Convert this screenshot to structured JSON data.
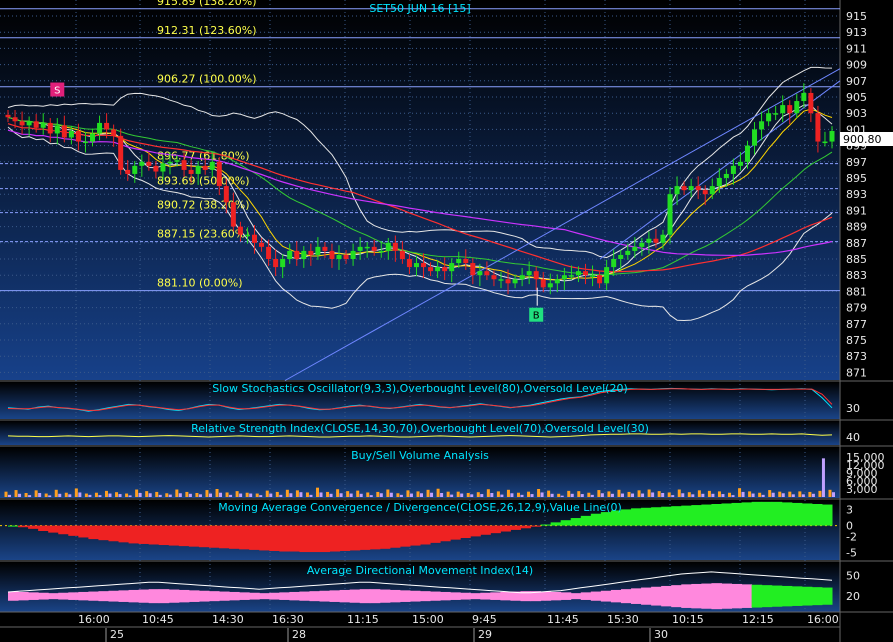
{
  "colors": {
    "panel_top": "#000000",
    "panel_bottom": "#123a7a",
    "grid": "#3a5a8a",
    "candle_up": "#22dd22",
    "candle_down": "#ee2222",
    "fib": "#8aa0ff",
    "fib_text": "#ffff4a",
    "title": "#00e5ff",
    "bollinger": "#e6e6e6",
    "ma_fast": "#ffd700",
    "ma_green": "#33cc33",
    "ma_red": "#ff3030",
    "ma_purple": "#cc33ff",
    "trendline": "#6e86ff"
  },
  "main": {
    "title": "SET50 JUN 16  [15]",
    "price_tag": "900.80",
    "signal_s": "S",
    "signal_b": "B"
  },
  "chart_data": [
    {
      "type": "candlestick",
      "title": "SET50 JUN 16  [15]",
      "ylim": [
        870,
        916
      ],
      "y_ticks": [
        871,
        873,
        875,
        877,
        879,
        881,
        883,
        885,
        887,
        889,
        891,
        893,
        895,
        897,
        899,
        901,
        903,
        905,
        907,
        909,
        911,
        913,
        915
      ],
      "last_price": 900.8,
      "fibonacci_levels": [
        {
          "price": 915.89,
          "label": "915.89 (138.20%)"
        },
        {
          "price": 912.31,
          "label": "912.31 (123.60%)"
        },
        {
          "price": 906.27,
          "label": "906.27 (100.00%)"
        },
        {
          "price": 896.77,
          "label": "896.77 (61.80%)"
        },
        {
          "price": 893.69,
          "label": "893.69 (50.00%)"
        },
        {
          "price": 890.72,
          "label": "890.72 (38.20%)"
        },
        {
          "price": 887.15,
          "label": "887.15 (23.60%)"
        },
        {
          "price": 881.1,
          "label": "881.10 (0.00%)"
        }
      ],
      "series": [
        {
          "values": [
            902.5,
            902,
            901.5,
            902,
            901.2,
            901.8,
            900.5,
            901.5,
            900,
            900.8,
            899.5,
            899.5,
            900.5,
            901.8,
            901,
            900.2,
            896,
            895.5,
            896.5,
            897,
            896.5,
            895.8,
            896.8,
            897,
            897.2,
            896,
            895.5,
            896.5,
            896,
            897,
            894,
            892,
            889,
            888,
            888,
            887,
            886.5,
            885,
            884,
            885,
            886,
            885,
            886,
            885.5,
            886.5,
            886,
            885,
            885.5,
            885,
            886,
            886.5,
            886.5,
            886,
            886,
            887,
            886,
            885,
            884,
            884.5,
            884,
            883.5,
            884,
            883.5,
            884.5,
            885,
            884.5,
            883,
            883.5,
            883,
            882.5,
            882.5,
            882,
            882.5,
            883,
            883.5,
            882.5,
            881.5,
            882,
            882.5,
            883,
            883,
            883.5,
            883,
            883,
            882,
            884,
            885,
            885.5,
            886,
            886.5,
            887,
            887.5,
            887,
            888,
            893,
            894,
            893.5,
            894,
            893.5,
            893,
            894,
            895,
            895.5,
            896.5,
            897,
            899,
            901,
            902,
            903,
            903,
            904,
            903,
            904.5,
            905.5,
            903,
            899.5,
            899.5,
            900.8
          ]
        }
      ],
      "signals": [
        {
          "label": "S",
          "index": 7,
          "price": 905.8
        },
        {
          "label": "B",
          "index": 75,
          "price": 878
        }
      ]
    },
    {
      "type": "line",
      "title": "Slow Stochastics Oscillator(9,3,3),Overbought Level(80),Oversold Level(20)",
      "y_ticks": [
        30
      ],
      "ylim": [
        0,
        100
      ],
      "series": [
        {
          "values": [
            30,
            28,
            26,
            32,
            35,
            30,
            28,
            25,
            20,
            24,
            30,
            35,
            40,
            38,
            33,
            30,
            25,
            22,
            28,
            35,
            40,
            38,
            30,
            25,
            28,
            32,
            36,
            40,
            38,
            34,
            28,
            24,
            26,
            30,
            35,
            38,
            34,
            30,
            28,
            32,
            36,
            40,
            36,
            32,
            30,
            34,
            38,
            42,
            38,
            34,
            30,
            34,
            38,
            44,
            50,
            56,
            60,
            62,
            70,
            78,
            82,
            84,
            86,
            85,
            84,
            86,
            87,
            86,
            85,
            84,
            86,
            85,
            84,
            86,
            85,
            84,
            83,
            84,
            85,
            86,
            84,
            60,
            30
          ]
        },
        {
          "values": [
            28,
            27,
            27,
            30,
            33,
            31,
            29,
            26,
            22,
            23,
            28,
            33,
            38,
            38,
            34,
            31,
            27,
            24,
            27,
            33,
            38,
            38,
            32,
            27,
            27,
            30,
            34,
            38,
            38,
            35,
            30,
            26,
            26,
            29,
            33,
            36,
            35,
            31,
            29,
            31,
            35,
            38,
            37,
            33,
            31,
            33,
            36,
            40,
            38,
            35,
            31,
            33,
            36,
            41,
            47,
            53,
            58,
            61,
            67,
            74,
            79,
            82,
            84,
            85,
            84,
            85,
            86,
            86,
            85,
            84,
            85,
            85,
            84,
            85,
            85,
            84,
            84,
            84,
            85,
            85,
            85,
            70,
            40
          ]
        }
      ]
    },
    {
      "type": "line",
      "title": "Relative Strength Index(CLOSE,14,30,70),Overbought Level(70),Oversold Level(30)",
      "y_ticks": [
        40
      ],
      "ylim": [
        20,
        80
      ],
      "series": [
        {
          "values": [
            43,
            42,
            42,
            41,
            41,
            42,
            43,
            42,
            41,
            42,
            43,
            43,
            42,
            41,
            42,
            43,
            44,
            43,
            42,
            41,
            40,
            41,
            42,
            43,
            42,
            41,
            41,
            42,
            43,
            42,
            41,
            40,
            40,
            41,
            42,
            42,
            43,
            42,
            41,
            40,
            40,
            41,
            42,
            43,
            42,
            41,
            40,
            41,
            42,
            43,
            44,
            43,
            42,
            41,
            40,
            41,
            42,
            44,
            46,
            47,
            48,
            48,
            49,
            49,
            48,
            48,
            49,
            48,
            49,
            49,
            48,
            48,
            49,
            49,
            48,
            48,
            49,
            48,
            48,
            49,
            47,
            45,
            46
          ]
        }
      ]
    },
    {
      "type": "bar",
      "title": "Buy/Sell Volume Analysis",
      "y_ticks": [
        "15,000",
        "12,000",
        "9,000",
        "6,000",
        "3,000"
      ],
      "ylim": [
        0,
        18000
      ],
      "series": [
        {
          "values": [
            2000,
            2600,
            1500,
            2500,
            1300,
            2700,
            1600,
            3200,
            1300,
            1600,
            2300,
            1800,
            1300,
            2800,
            2200,
            1900,
            1400,
            2800,
            1900,
            1500,
            2600,
            3000,
            1700,
            2200,
            1600,
            1300,
            2400,
            1900,
            2700,
            2500,
            1700,
            3500,
            1900,
            2900,
            2200,
            2400,
            1700,
            1900,
            2800,
            1400,
            2500,
            2100,
            2700,
            3100,
            2000,
            2000,
            1500,
            1800,
            2900,
            2100,
            2700,
            1600,
            2000,
            3000,
            2400,
            1200,
            2300,
            2200,
            1600,
            2600,
            2100,
            2700,
            1900,
            2500,
            2800,
            2200,
            1700,
            2800,
            1800,
            2500,
            2300,
            2100,
            1600,
            3300,
            2100,
            1600,
            2600,
            2000,
            2000,
            2100,
            1900,
            2300,
            2700
          ]
        },
        {
          "values": [
            800,
            1200,
            700,
            1500,
            600,
            1200,
            1000,
            1700,
            800,
            700,
            1300,
            1100,
            600,
            1500,
            1400,
            800,
            900,
            1400,
            1200,
            1000,
            1300,
            1600,
            800,
            1300,
            1300,
            700,
            1300,
            800,
            1400,
            1800,
            800,
            1700,
            1200,
            1400,
            1300,
            1200,
            700,
            1400,
            1600,
            800,
            1300,
            1400,
            1600,
            1500,
            900,
            1300,
            1000,
            1100,
            1500,
            900,
            1400,
            800,
            1100,
            1700,
            1200,
            500,
            1200,
            1100,
            800,
            1400,
            1200,
            1300,
            1300,
            1300,
            1700,
            1500,
            700,
            1400,
            1000,
            1200,
            1200,
            1100,
            700,
            1900,
            1300,
            800,
            1600,
            1400,
            1000,
            1000,
            1200,
            14500,
            1800
          ]
        }
      ]
    },
    {
      "type": "bar",
      "title": "Moving Average Convergence / Divergence(CLOSE,26,12,9),Value Line(0)",
      "y_ticks": [
        "3",
        "0",
        "-2",
        "-5"
      ],
      "ylim": [
        -6,
        4
      ],
      "series": [
        {
          "values": [
            0,
            -0.3,
            -0.6,
            -1,
            -1.3,
            -1.6,
            -1.9,
            -2.2,
            -2.5,
            -2.7,
            -2.9,
            -3.1,
            -3.3,
            -3.4,
            -3.5,
            -3.6,
            -3.7,
            -3.8,
            -3.9,
            -4,
            -4.1,
            -4.2,
            -4.3,
            -4.4,
            -4.5,
            -4.6,
            -4.7,
            -4.8,
            -4.8,
            -4.9,
            -4.9,
            -4.9,
            -4.8,
            -4.7,
            -4.6,
            -4.5,
            -4.4,
            -4.3,
            -4.1,
            -3.9,
            -3.7,
            -3.5,
            -3.2,
            -2.9,
            -2.6,
            -2.3,
            -2,
            -1.7,
            -1.4,
            -1.1,
            -0.8,
            -0.5,
            -0.2,
            0.2,
            0.6,
            1,
            1.4,
            1.8,
            2.2,
            2.5,
            2.8,
            3,
            3.2,
            3.3,
            3.4,
            3.5,
            3.6,
            3.7,
            3.8,
            3.9,
            4,
            4.1,
            4.2,
            4.3,
            4.4,
            4.4,
            4.4,
            4.3,
            4.2,
            4.1,
            4,
            3.9,
            3.8
          ]
        }
      ]
    },
    {
      "type": "area",
      "title": "Average Directional Movement Index(14)",
      "y_ticks": [
        50,
        20
      ],
      "ylim": [
        0,
        65
      ],
      "series": [
        {
          "values": [
            26,
            27,
            28,
            29,
            30,
            31,
            32,
            33,
            34,
            35,
            36,
            37,
            38,
            39,
            40,
            40,
            39,
            38,
            37,
            36,
            35,
            34,
            33,
            32,
            31,
            30,
            31,
            32,
            33,
            34,
            35,
            36,
            37,
            38,
            39,
            40,
            40,
            39,
            38,
            37,
            36,
            35,
            34,
            33,
            32,
            31,
            30,
            29,
            28,
            27,
            26,
            25,
            25,
            26,
            27,
            28,
            30,
            32,
            34,
            36,
            38,
            40,
            42,
            44,
            46,
            48,
            50,
            52,
            53,
            54,
            55,
            54,
            53,
            52,
            51,
            50,
            49,
            48,
            47,
            46,
            45,
            44,
            43
          ]
        }
      ]
    }
  ],
  "x_axis": {
    "time_labels": [
      "16:00",
      "10:45",
      "14:30",
      "16:30",
      "11:15",
      "15:00",
      "9:45",
      "11:45",
      "15:30",
      "10:15",
      "12:15",
      "16:00"
    ],
    "date_labels": [
      "25",
      "28",
      "29",
      "30"
    ]
  }
}
